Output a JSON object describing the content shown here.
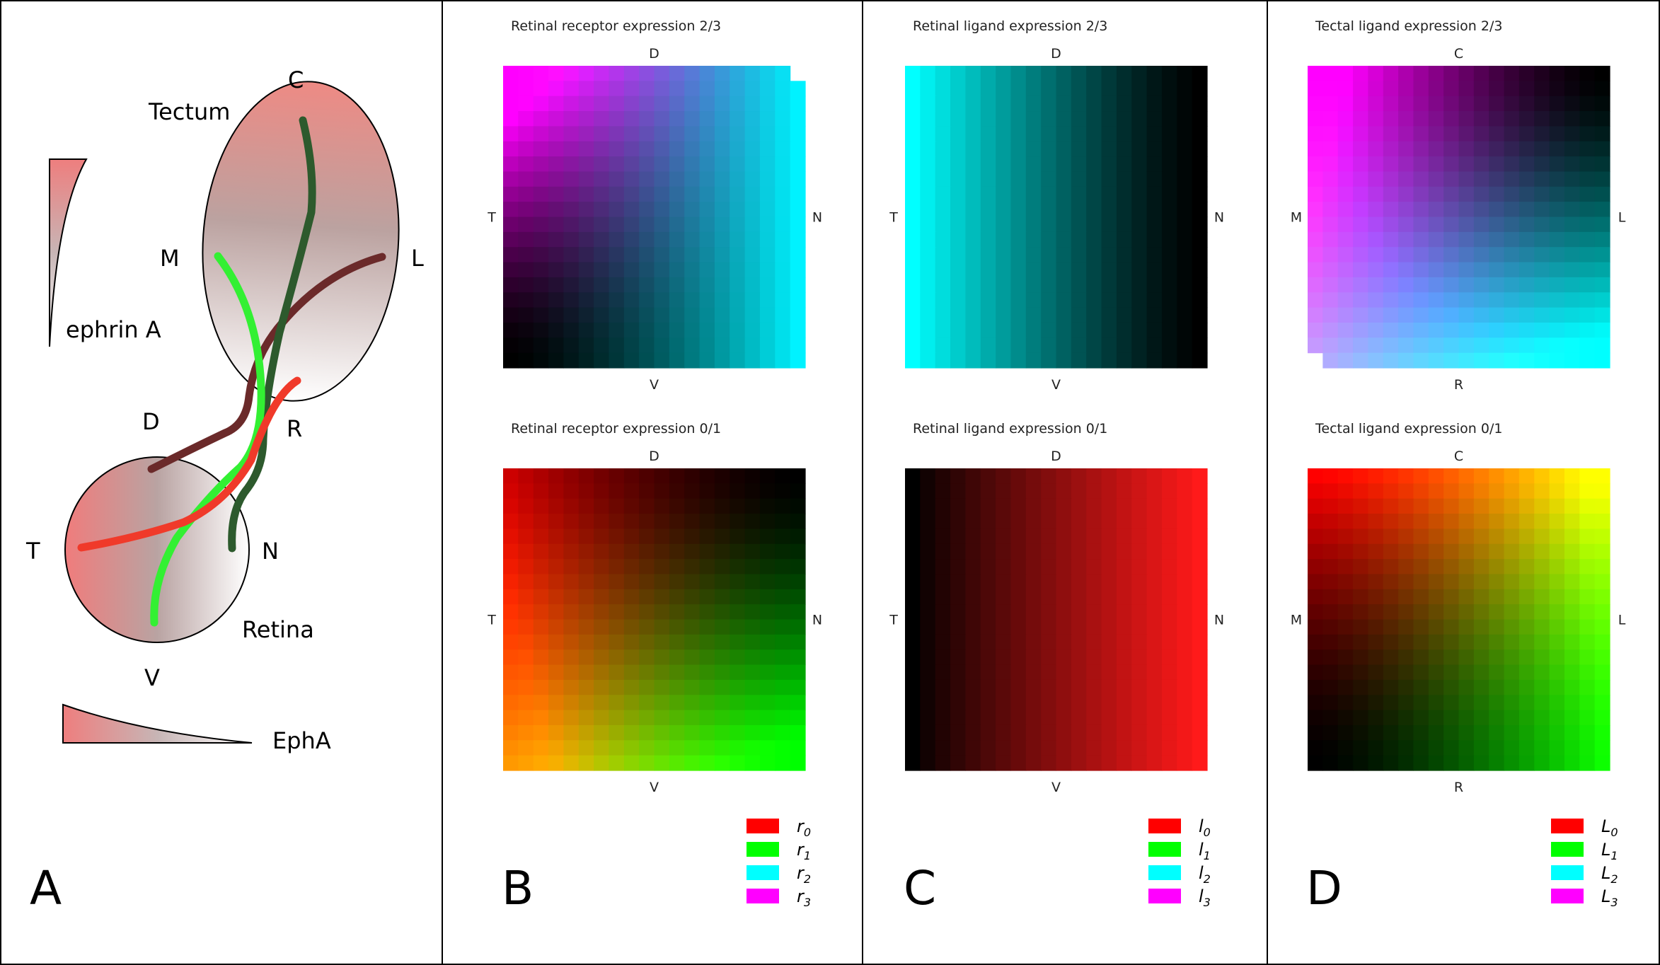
{
  "panel_a": {
    "letter": "A",
    "tectum_label": "Tectum",
    "retina_label": "Retina",
    "ephrin_label": "ephrin A",
    "eph_label": "EphA",
    "tectum_axes": {
      "top": "C",
      "left": "M",
      "right": "L",
      "bottom": "R"
    },
    "retina_axes": {
      "top": "D",
      "left": "T",
      "right": "N",
      "bottom": "V"
    },
    "colors": {
      "gradient_pink": "#ee7e7e",
      "axon_dark_red": "#6b2a2a",
      "axon_dark_green": "#2d5a2d",
      "axon_light_green": "#33f033",
      "axon_red": "#f03a2a"
    }
  },
  "panels": [
    {
      "letter": "B",
      "legend": [
        {
          "sym": "r",
          "sub": "0",
          "color": "#ff0000"
        },
        {
          "sym": "r",
          "sub": "1",
          "color": "#00ff00"
        },
        {
          "sym": "r",
          "sub": "2",
          "color": "#00ffff"
        },
        {
          "sym": "r",
          "sub": "3",
          "color": "#ff00ff"
        }
      ],
      "plots": [
        {
          "title": "Retinal receptor expression 2/3",
          "top": "D",
          "bottom": "V",
          "left": "T",
          "right": "N",
          "ch_a": "#ff00ff",
          "ch_b": "#00ffff",
          "mode": "rec"
        },
        {
          "title": "Retinal receptor expression 0/1",
          "top": "D",
          "bottom": "V",
          "left": "T",
          "right": "N",
          "ch_a": "#ff0000",
          "ch_b": "#00ff00",
          "mode": "rec01"
        }
      ]
    },
    {
      "letter": "C",
      "legend": [
        {
          "sym": "l",
          "sub": "0",
          "color": "#ff0000"
        },
        {
          "sym": "l",
          "sub": "1",
          "color": "#00ff00"
        },
        {
          "sym": "l",
          "sub": "2",
          "color": "#00ffff"
        },
        {
          "sym": "l",
          "sub": "3",
          "color": "#ff00ff"
        }
      ],
      "plots": [
        {
          "title": "Retinal ligand expression 2/3",
          "top": "D",
          "bottom": "V",
          "left": "T",
          "right": "N",
          "ch_a": "#00ffff",
          "ch_b": "#000000",
          "mode": "ligL"
        },
        {
          "title": "Retinal ligand expression 0/1",
          "top": "D",
          "bottom": "V",
          "left": "T",
          "right": "N",
          "ch_a": "#ff0000",
          "ch_b": "#000000",
          "mode": "ligR"
        }
      ]
    },
    {
      "letter": "D",
      "legend": [
        {
          "sym": "L",
          "sub": "0",
          "color": "#ff0000"
        },
        {
          "sym": "L",
          "sub": "1",
          "color": "#00ff00"
        },
        {
          "sym": "L",
          "sub": "2",
          "color": "#00ffff"
        },
        {
          "sym": "L",
          "sub": "3",
          "color": "#ff00ff"
        }
      ],
      "plots": [
        {
          "title": "Tectal ligand expression 2/3",
          "top": "C",
          "bottom": "R",
          "left": "M",
          "right": "L",
          "ch_a": "#ff00ff",
          "ch_b": "#00ffff",
          "mode": "tec23"
        },
        {
          "title": "Tectal ligand expression 0/1",
          "top": "C",
          "bottom": "R",
          "left": "M",
          "right": "L",
          "ch_a": "#ff0000",
          "ch_b": "#00ff00",
          "mode": "tec01"
        }
      ]
    }
  ]
}
